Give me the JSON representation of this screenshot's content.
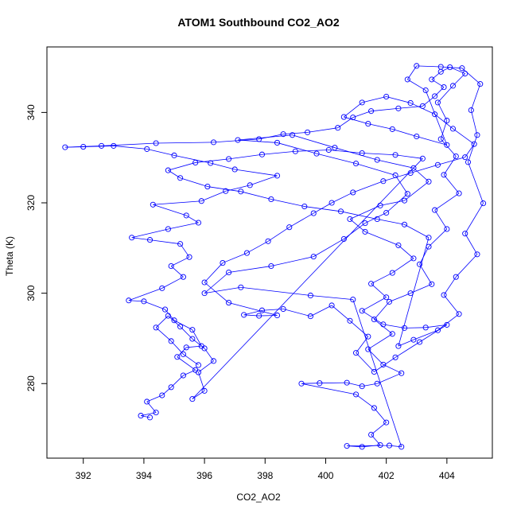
{
  "chart_data": {
    "type": "scatter",
    "title": "ATOM1 Southbound CO2_AO2",
    "xlabel": "CO2_AO2",
    "ylabel": "Theta (K)",
    "xlim": [
      390.8,
      405.5
    ],
    "ylim": [
      263.5,
      354.5
    ],
    "xticks": [
      392,
      394,
      396,
      398,
      400,
      402,
      404
    ],
    "yticks": [
      280,
      300,
      320,
      340
    ],
    "series": [
      {
        "color": "#0000ff",
        "marker": "open-circle",
        "connected": true,
        "points": [
          [
            394.2,
            272.5
          ],
          [
            393.9,
            272.9
          ],
          [
            394.4,
            273.6
          ],
          [
            394.1,
            276.0
          ],
          [
            394.6,
            277.4
          ],
          [
            394.9,
            279.2
          ],
          [
            395.3,
            281.8
          ],
          [
            395.7,
            283.0
          ],
          [
            395.1,
            285.9
          ],
          [
            395.4,
            288.0
          ],
          [
            395.9,
            288.3
          ],
          [
            395.6,
            291.9
          ],
          [
            395.0,
            294.0
          ],
          [
            394.7,
            296.4
          ],
          [
            394.0,
            298.2
          ],
          [
            393.5,
            298.4
          ],
          [
            394.6,
            301.1
          ],
          [
            395.3,
            303.6
          ],
          [
            394.9,
            306.0
          ],
          [
            395.5,
            308.0
          ],
          [
            395.2,
            310.9
          ],
          [
            394.2,
            311.8
          ],
          [
            393.6,
            312.3
          ],
          [
            394.8,
            314.2
          ],
          [
            395.8,
            315.6
          ],
          [
            395.4,
            317.2
          ],
          [
            394.3,
            319.6
          ],
          [
            395.9,
            320.4
          ],
          [
            396.7,
            322.6
          ],
          [
            397.5,
            323.9
          ],
          [
            398.4,
            326.0
          ],
          [
            397.0,
            327.4
          ],
          [
            396.2,
            328.8
          ],
          [
            395.0,
            330.5
          ],
          [
            394.1,
            331.9
          ],
          [
            393.0,
            332.6
          ],
          [
            392.0,
            332.4
          ],
          [
            391.4,
            332.3
          ],
          [
            392.6,
            332.6
          ],
          [
            394.4,
            333.2
          ],
          [
            396.3,
            333.4
          ],
          [
            397.8,
            334.1
          ],
          [
            398.6,
            335.2
          ],
          [
            399.4,
            335.6
          ],
          [
            400.4,
            336.6
          ],
          [
            400.9,
            338.9
          ],
          [
            401.5,
            340.3
          ],
          [
            402.4,
            340.9
          ],
          [
            403.2,
            341.4
          ],
          [
            403.6,
            343.6
          ],
          [
            403.9,
            345.6
          ],
          [
            403.5,
            347.3
          ],
          [
            403.8,
            349.0
          ],
          [
            404.1,
            350.0
          ],
          [
            404.6,
            348.6
          ],
          [
            404.2,
            345.9
          ],
          [
            403.7,
            342.2
          ],
          [
            404.0,
            338.2
          ],
          [
            403.8,
            334.1
          ],
          [
            404.3,
            330.3
          ],
          [
            403.9,
            326.2
          ],
          [
            404.4,
            322.1
          ],
          [
            403.6,
            318.4
          ],
          [
            404.0,
            314.2
          ],
          [
            403.4,
            310.3
          ],
          [
            403.1,
            306.4
          ],
          [
            403.5,
            302.0
          ],
          [
            402.8,
            300.0
          ],
          [
            402.1,
            298.1
          ],
          [
            401.6,
            294.2
          ],
          [
            402.2,
            291.0
          ],
          [
            401.4,
            287.6
          ],
          [
            401.9,
            284.2
          ],
          [
            402.5,
            282.3
          ],
          [
            401.7,
            280.0
          ],
          [
            401.2,
            279.4
          ],
          [
            400.7,
            280.2
          ],
          [
            399.8,
            280.1
          ],
          [
            399.2,
            280.0
          ],
          [
            401.0,
            277.6
          ],
          [
            401.6,
            274.6
          ],
          [
            402.0,
            271.4
          ],
          [
            401.5,
            268.7
          ],
          [
            401.8,
            266.4
          ],
          [
            401.2,
            266.0
          ],
          [
            400.7,
            266.2
          ],
          [
            402.1,
            266.3
          ],
          [
            402.5,
            266.0
          ],
          [
            400.9,
            298.6
          ],
          [
            399.5,
            299.5
          ],
          [
            397.2,
            301.3
          ],
          [
            396.0,
            300.0
          ],
          [
            396.8,
            304.6
          ],
          [
            398.2,
            306.0
          ],
          [
            399.6,
            308.1
          ],
          [
            400.6,
            312.0
          ],
          [
            401.3,
            315.5
          ],
          [
            402.0,
            317.8
          ],
          [
            402.7,
            322.0
          ],
          [
            402.3,
            326.1
          ],
          [
            401.0,
            328.7
          ],
          [
            399.7,
            330.9
          ],
          [
            398.4,
            333.3
          ],
          [
            397.1,
            333.9
          ],
          [
            398.9,
            335.0
          ],
          [
            400.3,
            332.2
          ],
          [
            401.7,
            329.5
          ],
          [
            402.9,
            327.7
          ],
          [
            403.4,
            324.7
          ],
          [
            402.6,
            320.5
          ],
          [
            401.8,
            319.4
          ],
          [
            400.8,
            316.4
          ],
          [
            401.3,
            313.6
          ],
          [
            402.4,
            310.6
          ],
          [
            402.9,
            307.7
          ],
          [
            402.2,
            304.5
          ],
          [
            401.5,
            302.1
          ],
          [
            402.0,
            299.1
          ],
          [
            401.2,
            296.1
          ],
          [
            401.9,
            293.1
          ],
          [
            402.6,
            292.3
          ],
          [
            403.3,
            292.4
          ],
          [
            404.0,
            293.0
          ],
          [
            403.1,
            289.2
          ],
          [
            402.3,
            285.8
          ],
          [
            401.6,
            282.6
          ],
          [
            401.0,
            286.8
          ],
          [
            401.4,
            290.4
          ],
          [
            400.8,
            293.9
          ],
          [
            400.2,
            297.3
          ],
          [
            399.5,
            294.9
          ],
          [
            398.6,
            296.5
          ],
          [
            397.9,
            296.2
          ],
          [
            397.3,
            295.2
          ],
          [
            397.8,
            295.0
          ],
          [
            398.4,
            295.1
          ],
          [
            396.8,
            297.9
          ],
          [
            396.0,
            302.4
          ],
          [
            396.6,
            306.7
          ],
          [
            397.4,
            308.9
          ],
          [
            398.1,
            311.5
          ],
          [
            398.8,
            314.6
          ],
          [
            399.6,
            317.7
          ],
          [
            400.2,
            320.0
          ],
          [
            400.9,
            322.3
          ],
          [
            401.9,
            324.8
          ],
          [
            402.8,
            326.6
          ],
          [
            403.7,
            328.4
          ],
          [
            404.6,
            330.1
          ],
          [
            404.9,
            333.0
          ],
          [
            404.2,
            336.4
          ],
          [
            403.6,
            339.6
          ],
          [
            402.8,
            342.1
          ],
          [
            402.0,
            343.5
          ],
          [
            401.2,
            342.2
          ],
          [
            400.6,
            339.0
          ],
          [
            401.4,
            337.5
          ],
          [
            402.2,
            336.3
          ],
          [
            403.0,
            334.7
          ],
          [
            404.0,
            332.8
          ],
          [
            403.3,
            344.9
          ],
          [
            402.7,
            347.3
          ],
          [
            403.0,
            350.3
          ],
          [
            403.8,
            350.1
          ],
          [
            404.5,
            349.8
          ],
          [
            405.1,
            346.3
          ],
          [
            404.8,
            340.5
          ],
          [
            405.0,
            335.0
          ],
          [
            404.7,
            329.0
          ],
          [
            405.2,
            319.9
          ],
          [
            404.6,
            313.2
          ],
          [
            405.0,
            308.6
          ],
          [
            404.3,
            303.6
          ],
          [
            403.9,
            299.6
          ],
          [
            404.4,
            295.4
          ],
          [
            403.7,
            291.8
          ],
          [
            402.9,
            289.7
          ],
          [
            402.4,
            288.3
          ],
          [
            403.4,
            312.3
          ],
          [
            402.6,
            315.2
          ],
          [
            401.7,
            316.4
          ],
          [
            400.5,
            318.1
          ],
          [
            399.3,
            319.2
          ],
          [
            398.2,
            320.8
          ],
          [
            397.2,
            322.5
          ],
          [
            396.1,
            323.6
          ],
          [
            395.2,
            325.5
          ],
          [
            394.8,
            327.2
          ],
          [
            395.7,
            328.9
          ],
          [
            396.8,
            329.7
          ],
          [
            397.9,
            330.7
          ],
          [
            399.0,
            331.4
          ],
          [
            400.1,
            331.7
          ],
          [
            401.2,
            331.0
          ],
          [
            402.3,
            330.6
          ],
          [
            403.2,
            329.8
          ],
          [
            395.6,
            276.6
          ],
          [
            396.0,
            278.4
          ],
          [
            395.8,
            282.5
          ],
          [
            396.3,
            285.0
          ],
          [
            396.0,
            287.8
          ],
          [
            395.6,
            289.9
          ],
          [
            395.2,
            292.6
          ],
          [
            394.8,
            295.0
          ],
          [
            394.4,
            292.4
          ],
          [
            394.9,
            289.4
          ],
          [
            395.3,
            286.5
          ],
          [
            395.8,
            284.1
          ]
        ]
      }
    ]
  }
}
